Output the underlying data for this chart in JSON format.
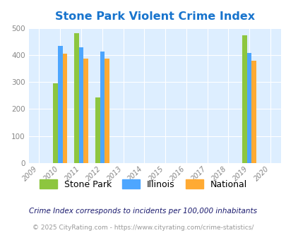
{
  "title": "Stone Park Violent Crime Index",
  "title_color": "#1874CD",
  "plot_bg_color": "#ddeeff",
  "years": [
    2009,
    2010,
    2011,
    2012,
    2013,
    2014,
    2015,
    2016,
    2017,
    2018,
    2019,
    2020
  ],
  "data": {
    "2010": {
      "stone_park": 295,
      "illinois": 433,
      "national": 405
    },
    "2011": {
      "stone_park": 480,
      "illinois": 428,
      "national": 386
    },
    "2012": {
      "stone_park": 243,
      "illinois": 413,
      "national": 386
    },
    "2019": {
      "stone_park": 474,
      "illinois": 407,
      "national": 378
    }
  },
  "colors": {
    "stone_park": "#8dc63f",
    "illinois": "#4da6ff",
    "national": "#ffaa33"
  },
  "ylim": [
    0,
    500
  ],
  "yticks": [
    0,
    100,
    200,
    300,
    400,
    500
  ],
  "bar_width": 0.22,
  "legend_labels": [
    "Stone Park",
    "Illinois",
    "National"
  ],
  "footnote1": "Crime Index corresponds to incidents per 100,000 inhabitants",
  "footnote2": "© 2025 CityRating.com - https://www.cityrating.com/crime-statistics/",
  "footnote1_color": "#1a1a6e",
  "footnote2_color": "#999999"
}
